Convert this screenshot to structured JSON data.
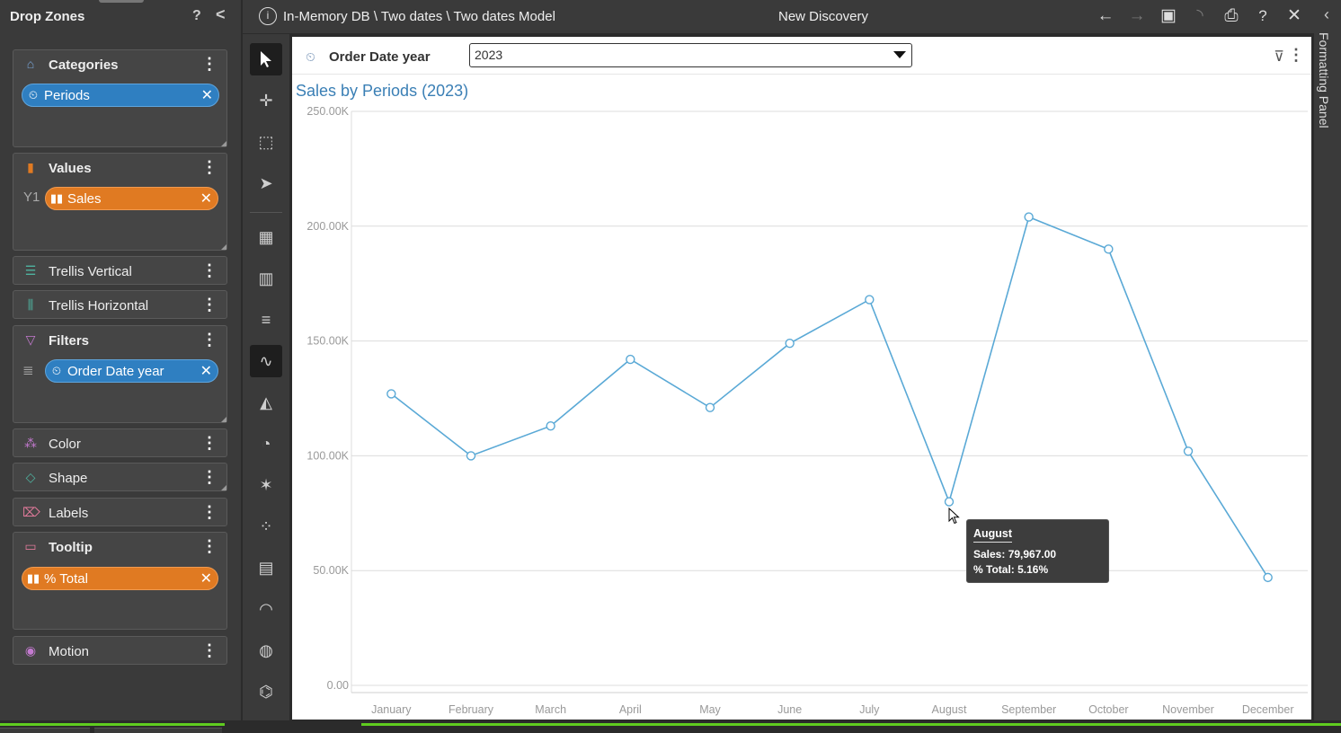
{
  "drop_zones": {
    "title": "Drop Zones",
    "help": "?",
    "collapse": "<",
    "zones": {
      "categories": {
        "title": "Categories",
        "pill": "Periods"
      },
      "values": {
        "title": "Values",
        "prefix": "Y1",
        "pill": "Sales"
      },
      "trellis_vertical": {
        "title": "Trellis Vertical"
      },
      "trellis_horizontal": {
        "title": "Trellis Horizontal"
      },
      "filters": {
        "title": "Filters",
        "pill": "Order Date year"
      },
      "color": {
        "title": "Color"
      },
      "shape": {
        "title": "Shape"
      },
      "labels": {
        "title": "Labels"
      },
      "tooltip": {
        "title": "Tooltip",
        "pill": "% Total"
      },
      "motion": {
        "title": "Motion"
      }
    }
  },
  "header": {
    "path": "In-Memory DB \\ Two dates \\ Two dates Model",
    "title": "New Discovery",
    "info": "i"
  },
  "filter_bar": {
    "label": "Order Date year",
    "selected": "2023"
  },
  "tooltip": {
    "title": "August",
    "sales": "Sales: 79,967.00",
    "total": "% Total: 5.16%"
  },
  "formatting_panel": {
    "label": "Formatting Panel"
  },
  "colors": {
    "line": "#5aa9d6",
    "title": "#3a7fb5",
    "pill_blue": "#2f7fc1",
    "pill_orange": "#e07a22"
  },
  "chart_data": {
    "type": "line",
    "title": "Sales by Periods (2023)",
    "categories": [
      "January",
      "February",
      "March",
      "April",
      "May",
      "June",
      "July",
      "August",
      "September",
      "October",
      "November",
      "December"
    ],
    "values": [
      127000,
      100000,
      113000,
      142000,
      121000,
      149000,
      168000,
      79967,
      204000,
      190000,
      102000,
      47000
    ],
    "ylim": [
      0,
      250000
    ],
    "yticks": [
      "0.00",
      "50.00K",
      "100.00K",
      "150.00K",
      "200.00K",
      "250.00K"
    ],
    "grid": true
  }
}
